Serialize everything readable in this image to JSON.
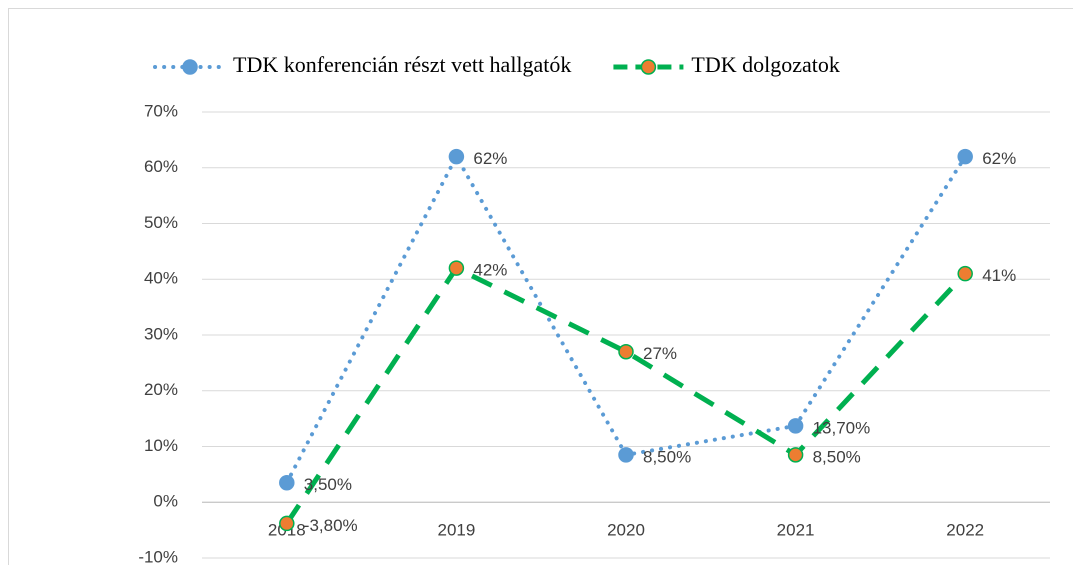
{
  "chart_data": {
    "type": "line",
    "categories": [
      "2018",
      "2019",
      "2020",
      "2021",
      "2022"
    ],
    "series": [
      {
        "name": "TDK konferencián részt vett hallgatók",
        "color": "#5b9bd5",
        "marker_color": "#5b9bd5",
        "style": "dotted",
        "values": [
          3.5,
          62,
          8.5,
          13.7,
          62
        ],
        "value_labels": [
          "3,50%",
          "62%",
          "8,50%",
          "13,70%",
          "62%"
        ]
      },
      {
        "name": "TDK dolgozatok",
        "color": "#00b050",
        "marker_color": "#ed7d31",
        "style": "dashed",
        "values": [
          -3.8,
          42,
          27,
          8.5,
          41
        ],
        "value_labels": [
          "-3,80%",
          "42%",
          "27%",
          "8,50%",
          "41%"
        ]
      }
    ],
    "ylim": [
      -10,
      70
    ],
    "yticks": [
      {
        "value": -10,
        "label": "-10%"
      },
      {
        "value": 0,
        "label": "0%"
      },
      {
        "value": 10,
        "label": "10%"
      },
      {
        "value": 20,
        "label": "20%"
      },
      {
        "value": 30,
        "label": "30%"
      },
      {
        "value": 40,
        "label": "40%"
      },
      {
        "value": 50,
        "label": "50%"
      },
      {
        "value": 60,
        "label": "60%"
      },
      {
        "value": 70,
        "label": "70%"
      }
    ],
    "grid": true,
    "legend": "top"
  }
}
